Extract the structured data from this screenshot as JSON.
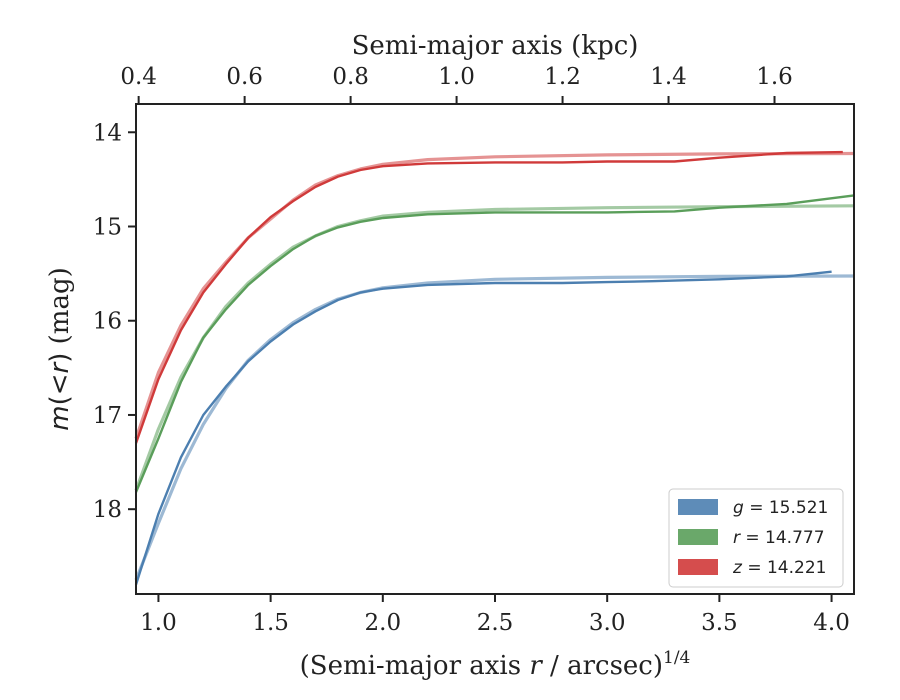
{
  "chart_data": {
    "type": "line",
    "xlabel_bottom": "(Semi-major axis r / arcsec)^(1/4)",
    "xlabel_top": "Semi-major axis (kpc)",
    "ylabel": "m(< r) (mag)",
    "xlim": [
      0.9,
      4.1
    ],
    "ylim": [
      18.9,
      13.7
    ],
    "y_inverted": true,
    "x_ticks": [
      "1.0",
      "1.5",
      "2.0",
      "2.5",
      "3.0",
      "3.5",
      "4.0"
    ],
    "y_ticks": [
      "14",
      "15",
      "16",
      "17",
      "18"
    ],
    "top_ticks": [
      "0.4",
      "0.6",
      "0.8",
      "1.0",
      "1.2",
      "1.4",
      "1.6"
    ],
    "top_axis_range_kpc": [
      0.395,
      1.75
    ],
    "legend_position": "lower-right",
    "grid": false,
    "series": [
      {
        "name": "g = 15.521",
        "label_var": "g",
        "label_val": "15.521",
        "color": "#4c7fb0",
        "asymptote": 15.521,
        "model": {
          "x": [
            0.9,
            1.0,
            1.1,
            1.2,
            1.3,
            1.4,
            1.5,
            1.6,
            1.7,
            1.8,
            1.9,
            2.0,
            2.2,
            2.5,
            3.0,
            3.5,
            4.1
          ],
          "y": [
            18.75,
            18.15,
            17.57,
            17.1,
            16.72,
            16.42,
            16.2,
            16.02,
            15.88,
            15.77,
            15.7,
            15.65,
            15.6,
            15.56,
            15.54,
            15.53,
            15.525
          ]
        },
        "measured": {
          "x": [
            0.9,
            1.0,
            1.1,
            1.2,
            1.3,
            1.4,
            1.5,
            1.6,
            1.7,
            1.8,
            1.9,
            2.0,
            2.2,
            2.5,
            2.8,
            3.0,
            3.2,
            3.5,
            3.8,
            4.0
          ],
          "y": [
            18.8,
            18.05,
            17.45,
            17.0,
            16.7,
            16.43,
            16.22,
            16.04,
            15.9,
            15.78,
            15.7,
            15.66,
            15.62,
            15.6,
            15.6,
            15.59,
            15.58,
            15.56,
            15.53,
            15.48
          ]
        }
      },
      {
        "name": "r = 14.777",
        "label_var": "r",
        "label_val": "14.777",
        "color": "#5a9e5a",
        "asymptote": 14.777,
        "model": {
          "x": [
            0.9,
            1.0,
            1.1,
            1.2,
            1.3,
            1.4,
            1.5,
            1.6,
            1.7,
            1.8,
            1.9,
            2.0,
            2.2,
            2.5,
            3.0,
            3.5,
            4.1
          ],
          "y": [
            17.8,
            17.15,
            16.6,
            16.18,
            15.85,
            15.6,
            15.4,
            15.22,
            15.1,
            15.0,
            14.94,
            14.89,
            14.85,
            14.82,
            14.8,
            14.79,
            14.78
          ]
        },
        "measured": {
          "x": [
            0.9,
            1.0,
            1.1,
            1.2,
            1.3,
            1.4,
            1.5,
            1.6,
            1.7,
            1.8,
            1.9,
            2.0,
            2.2,
            2.5,
            2.8,
            3.0,
            3.3,
            3.5,
            3.8,
            4.1
          ],
          "y": [
            17.82,
            17.25,
            16.65,
            16.18,
            15.88,
            15.62,
            15.42,
            15.24,
            15.1,
            15.01,
            14.95,
            14.91,
            14.87,
            14.85,
            14.85,
            14.85,
            14.84,
            14.8,
            14.76,
            14.67
          ]
        }
      },
      {
        "name": "z = 14.221",
        "label_var": "z",
        "label_val": "14.221",
        "color": "#d03a3a",
        "asymptote": 14.221,
        "model": {
          "x": [
            0.9,
            1.0,
            1.1,
            1.2,
            1.3,
            1.4,
            1.5,
            1.6,
            1.7,
            1.8,
            1.9,
            2.0,
            2.2,
            2.5,
            3.0,
            3.5,
            4.1
          ],
          "y": [
            17.25,
            16.55,
            16.05,
            15.66,
            15.38,
            15.12,
            14.92,
            14.72,
            14.56,
            14.46,
            14.39,
            14.34,
            14.29,
            14.26,
            14.24,
            14.23,
            14.225
          ]
        },
        "measured": {
          "x": [
            0.9,
            1.0,
            1.1,
            1.2,
            1.3,
            1.4,
            1.5,
            1.6,
            1.7,
            1.8,
            1.9,
            2.0,
            2.2,
            2.5,
            2.8,
            3.0,
            3.3,
            3.5,
            3.8,
            4.05
          ],
          "y": [
            17.3,
            16.62,
            16.1,
            15.7,
            15.4,
            15.12,
            14.9,
            14.73,
            14.58,
            14.47,
            14.4,
            14.36,
            14.33,
            14.32,
            14.32,
            14.31,
            14.31,
            14.27,
            14.22,
            14.21
          ]
        }
      }
    ]
  }
}
